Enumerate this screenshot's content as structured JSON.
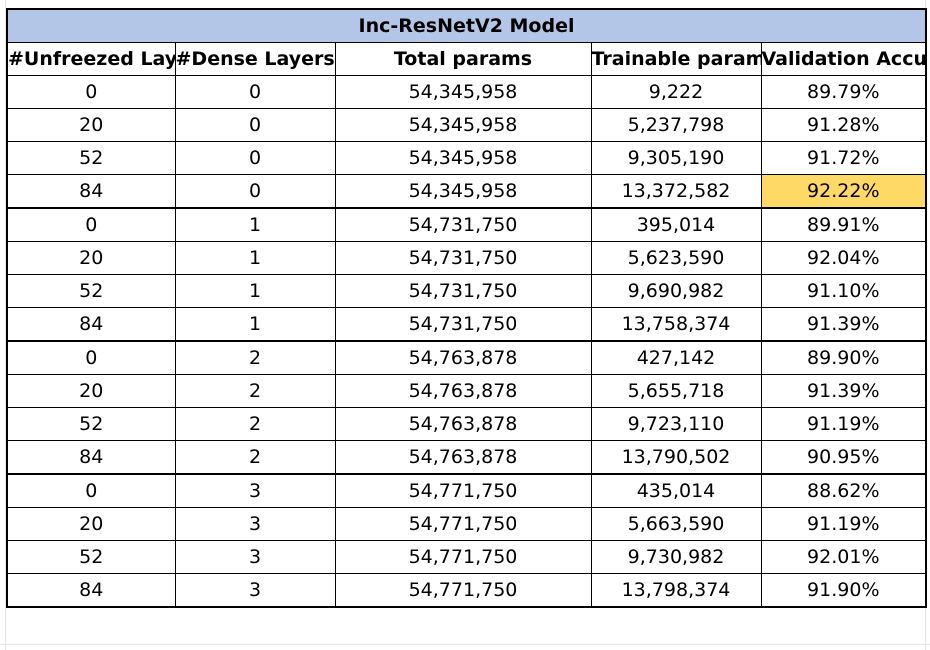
{
  "table": {
    "title": "Inc-ResNetV2 Model",
    "headers": [
      "#Unfreezed Layers",
      "#Dense Layers",
      "Total params",
      "Trainable params",
      "Validation Accuracy"
    ],
    "highlight_color": "#ffd966",
    "title_background": "#b4c6e7",
    "rows": [
      [
        "0",
        "0",
        "54,345,958",
        "9,222",
        "89.79%"
      ],
      [
        "20",
        "0",
        "54,345,958",
        "5,237,798",
        "91.28%"
      ],
      [
        "52",
        "0",
        "54,345,958",
        "9,305,190",
        "91.72%"
      ],
      [
        "84",
        "0",
        "54,345,958",
        "13,372,582",
        "92.22%"
      ],
      [
        "0",
        "1",
        "54,731,750",
        "395,014",
        "89.91%"
      ],
      [
        "20",
        "1",
        "54,731,750",
        "5,623,590",
        "92.04%"
      ],
      [
        "52",
        "1",
        "54,731,750",
        "9,690,982",
        "91.10%"
      ],
      [
        "84",
        "1",
        "54,731,750",
        "13,758,374",
        "91.39%"
      ],
      [
        "0",
        "2",
        "54,763,878",
        "427,142",
        "89.90%"
      ],
      [
        "20",
        "2",
        "54,763,878",
        "5,655,718",
        "91.39%"
      ],
      [
        "52",
        "2",
        "54,763,878",
        "9,723,110",
        "91.19%"
      ],
      [
        "84",
        "2",
        "54,763,878",
        "13,790,502",
        "90.95%"
      ],
      [
        "0",
        "3",
        "54,771,750",
        "435,014",
        "88.62%"
      ],
      [
        "20",
        "3",
        "54,771,750",
        "5,663,590",
        "91.19%"
      ],
      [
        "52",
        "3",
        "54,771,750",
        "9,730,982",
        "92.01%"
      ],
      [
        "84",
        "3",
        "54,771,750",
        "13,798,374",
        "91.90%"
      ]
    ],
    "highlighted_cell": {
      "row": 3,
      "column": 4
    }
  }
}
